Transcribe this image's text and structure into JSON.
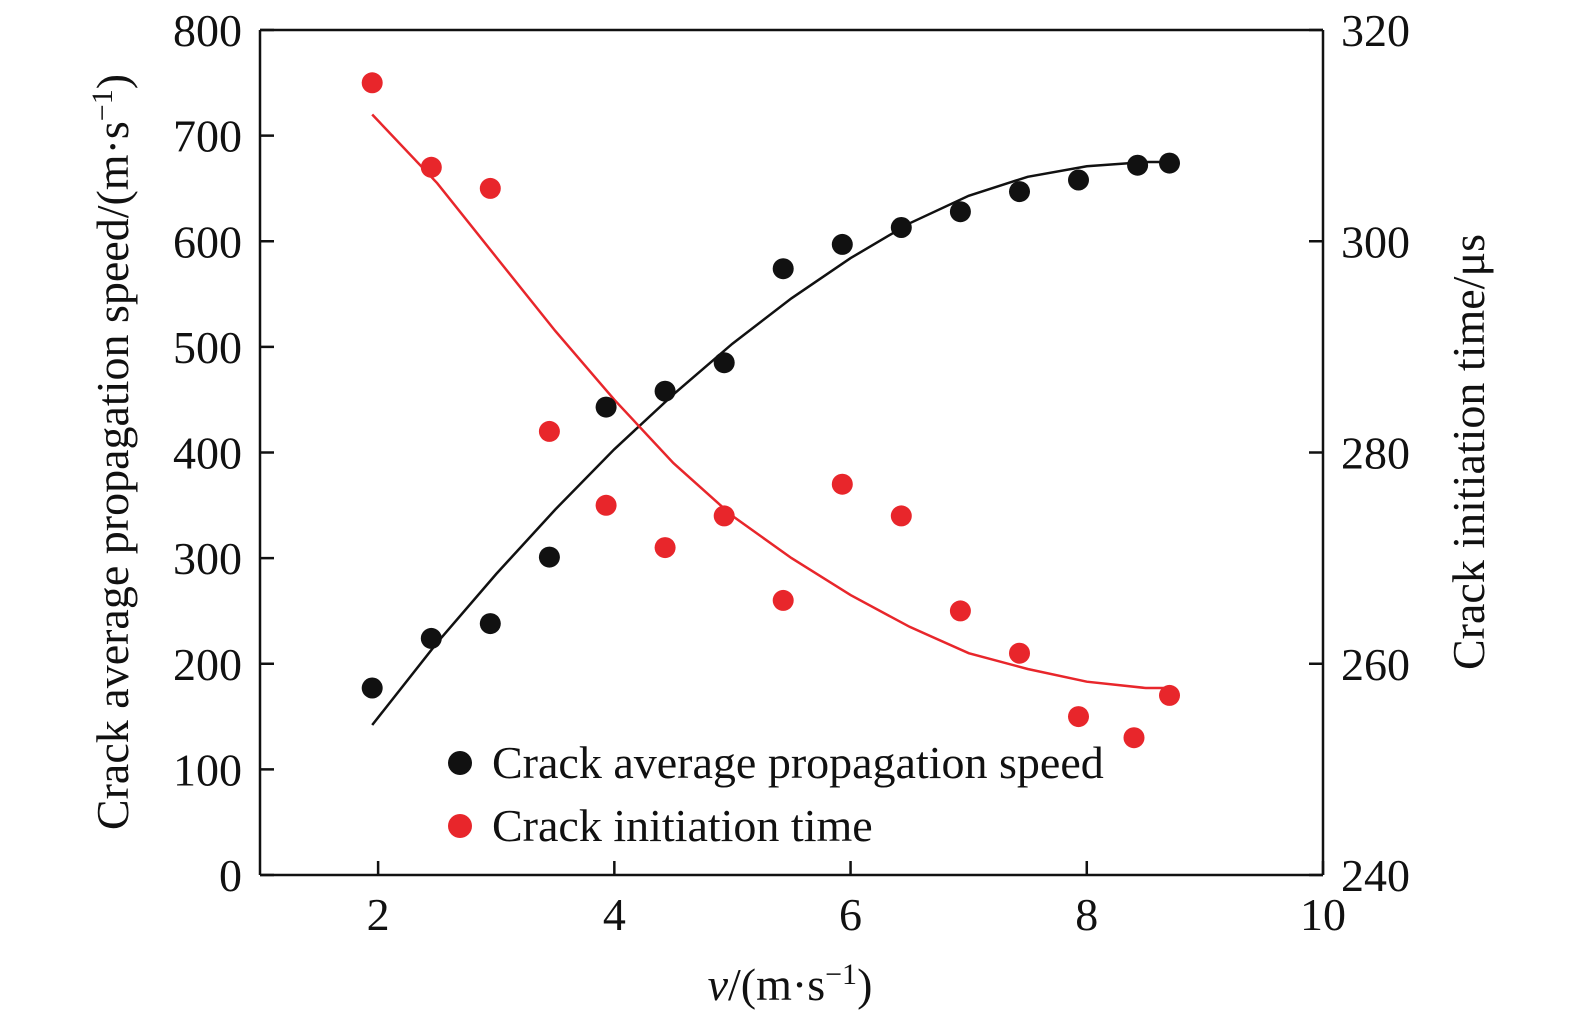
{
  "chart_data": {
    "type": "scatter",
    "x_ticks": [
      "2",
      "4",
      "6",
      "8",
      "10"
    ],
    "xlim": [
      1,
      10
    ],
    "left_axis": {
      "ylim": [
        0,
        800
      ],
      "ticks": [
        "0",
        "100",
        "200",
        "300",
        "400",
        "500",
        "600",
        "700",
        "800"
      ]
    },
    "right_axis": {
      "ylim": [
        240,
        320
      ],
      "ticks": [
        "240",
        "260",
        "280",
        "300",
        "320"
      ]
    },
    "series": [
      {
        "name": "Crack average propagation speed",
        "axis": "left",
        "color": "#111111",
        "points": [
          {
            "x": 1.95,
            "y": 177
          },
          {
            "x": 2.45,
            "y": 224
          },
          {
            "x": 2.95,
            "y": 238
          },
          {
            "x": 3.45,
            "y": 301
          },
          {
            "x": 3.93,
            "y": 443
          },
          {
            "x": 4.43,
            "y": 458
          },
          {
            "x": 4.93,
            "y": 485
          },
          {
            "x": 5.43,
            "y": 574
          },
          {
            "x": 5.93,
            "y": 597
          },
          {
            "x": 6.43,
            "y": 613
          },
          {
            "x": 6.93,
            "y": 628
          },
          {
            "x": 7.43,
            "y": 647
          },
          {
            "x": 7.93,
            "y": 658
          },
          {
            "x": 8.43,
            "y": 672
          },
          {
            "x": 8.7,
            "y": 674
          }
        ],
        "fit": [
          {
            "x": 1.95,
            "y": 142
          },
          {
            "x": 2.5,
            "y": 220
          },
          {
            "x": 3.0,
            "y": 285
          },
          {
            "x": 3.5,
            "y": 346
          },
          {
            "x": 4.0,
            "y": 403
          },
          {
            "x": 4.5,
            "y": 455
          },
          {
            "x": 5.0,
            "y": 503
          },
          {
            "x": 5.5,
            "y": 546
          },
          {
            "x": 6.0,
            "y": 584
          },
          {
            "x": 6.5,
            "y": 617
          },
          {
            "x": 7.0,
            "y": 643
          },
          {
            "x": 7.5,
            "y": 661
          },
          {
            "x": 8.0,
            "y": 671
          },
          {
            "x": 8.5,
            "y": 675
          },
          {
            "x": 8.7,
            "y": 675
          }
        ]
      },
      {
        "name": "Crack initiation time",
        "axis": "right",
        "color": "#e8262b",
        "points": [
          {
            "x": 1.95,
            "y": 315
          },
          {
            "x": 2.45,
            "y": 307
          },
          {
            "x": 2.95,
            "y": 305
          },
          {
            "x": 3.45,
            "y": 282
          },
          {
            "x": 3.93,
            "y": 275
          },
          {
            "x": 4.43,
            "y": 271
          },
          {
            "x": 4.93,
            "y": 274
          },
          {
            "x": 5.43,
            "y": 266
          },
          {
            "x": 5.93,
            "y": 277
          },
          {
            "x": 6.43,
            "y": 274
          },
          {
            "x": 6.93,
            "y": 265
          },
          {
            "x": 7.43,
            "y": 261
          },
          {
            "x": 7.93,
            "y": 255
          },
          {
            "x": 8.4,
            "y": 253
          },
          {
            "x": 8.7,
            "y": 257
          }
        ],
        "fit": [
          {
            "x": 1.95,
            "y": 312
          },
          {
            "x": 2.5,
            "y": 305.5
          },
          {
            "x": 3.0,
            "y": 298.5
          },
          {
            "x": 3.5,
            "y": 291.5
          },
          {
            "x": 4.0,
            "y": 285
          },
          {
            "x": 4.5,
            "y": 279
          },
          {
            "x": 5.0,
            "y": 274
          },
          {
            "x": 5.5,
            "y": 270
          },
          {
            "x": 6.0,
            "y": 266.5
          },
          {
            "x": 6.5,
            "y": 263.5
          },
          {
            "x": 7.0,
            "y": 261
          },
          {
            "x": 7.5,
            "y": 259.5
          },
          {
            "x": 8.0,
            "y": 258.3
          },
          {
            "x": 8.5,
            "y": 257.7
          },
          {
            "x": 8.7,
            "y": 257.7
          }
        ]
      }
    ],
    "xlabel": {
      "italic": "v",
      "text": "/(m·s",
      "sup": "−1",
      "close": ")"
    },
    "ylabel_left": {
      "text": "Crack average propagation speed/(m·s",
      "sup": "−1",
      "close": ")"
    },
    "ylabel_right": "Crack initiation time/μs",
    "legend": {
      "position": "bottom-center",
      "entries": [
        "Crack average propagation speed",
        "Crack initiation time"
      ]
    },
    "grid": false
  }
}
